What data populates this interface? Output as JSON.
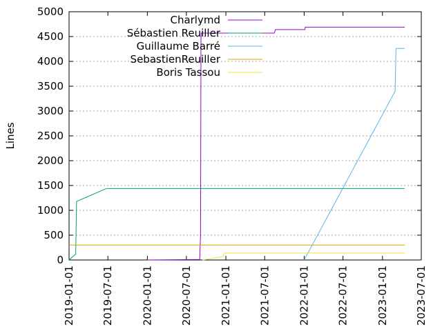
{
  "chart_data": {
    "type": "line",
    "title": "",
    "xlabel": "",
    "ylabel": "Lines",
    "x_scale": "time",
    "xlim": [
      "2019-01-01",
      "2023-07-01"
    ],
    "ylim": [
      0,
      5000
    ],
    "y_ticks": [
      0,
      500,
      1000,
      1500,
      2000,
      2500,
      3000,
      3500,
      4000,
      4500,
      5000
    ],
    "x_ticks": [
      "2019-01-01",
      "2019-07-01",
      "2020-01-01",
      "2020-07-01",
      "2021-01-01",
      "2021-07-01",
      "2022-01-01",
      "2022-07-01",
      "2023-01-01",
      "2023-07-01"
    ],
    "grid": "horizontal dotted",
    "legend_position": "top-right",
    "series": [
      {
        "name": "Charlymd",
        "color": "#9400d3",
        "points": [
          [
            "2020-01-01",
            0
          ],
          [
            "2020-09-01",
            10
          ],
          [
            "2020-09-05",
            500
          ],
          [
            "2020-09-07",
            4450
          ],
          [
            "2020-09-08",
            4570
          ],
          [
            "2021-08-15",
            4570
          ],
          [
            "2021-08-20",
            4640
          ],
          [
            "2022-01-05",
            4640
          ],
          [
            "2022-01-06",
            4690
          ],
          [
            "2023-04-15",
            4690
          ]
        ]
      },
      {
        "name": "Sébastien Reuiller",
        "color": "#009e73",
        "points": [
          [
            "2019-01-01",
            0
          ],
          [
            "2019-02-01",
            120
          ],
          [
            "2019-02-05",
            1180
          ],
          [
            "2019-06-25",
            1440
          ],
          [
            "2023-04-15",
            1440
          ]
        ]
      },
      {
        "name": "Guillaume Barré",
        "color": "#56b4e9",
        "points": [
          [
            "2022-01-01",
            0
          ],
          [
            "2023-03-01",
            3400
          ],
          [
            "2023-03-05",
            4260
          ],
          [
            "2023-04-15",
            4260
          ]
        ]
      },
      {
        "name": "SebastienReuiller",
        "color": "#e69f00",
        "points": [
          [
            "2019-01-01",
            300
          ],
          [
            "2023-04-15",
            300
          ]
        ]
      },
      {
        "name": "Boris Tassou",
        "color": "#f0e442",
        "points": [
          [
            "2020-09-15",
            0
          ],
          [
            "2020-12-20",
            70
          ],
          [
            "2020-12-25",
            140
          ],
          [
            "2023-04-15",
            140
          ]
        ]
      }
    ]
  }
}
